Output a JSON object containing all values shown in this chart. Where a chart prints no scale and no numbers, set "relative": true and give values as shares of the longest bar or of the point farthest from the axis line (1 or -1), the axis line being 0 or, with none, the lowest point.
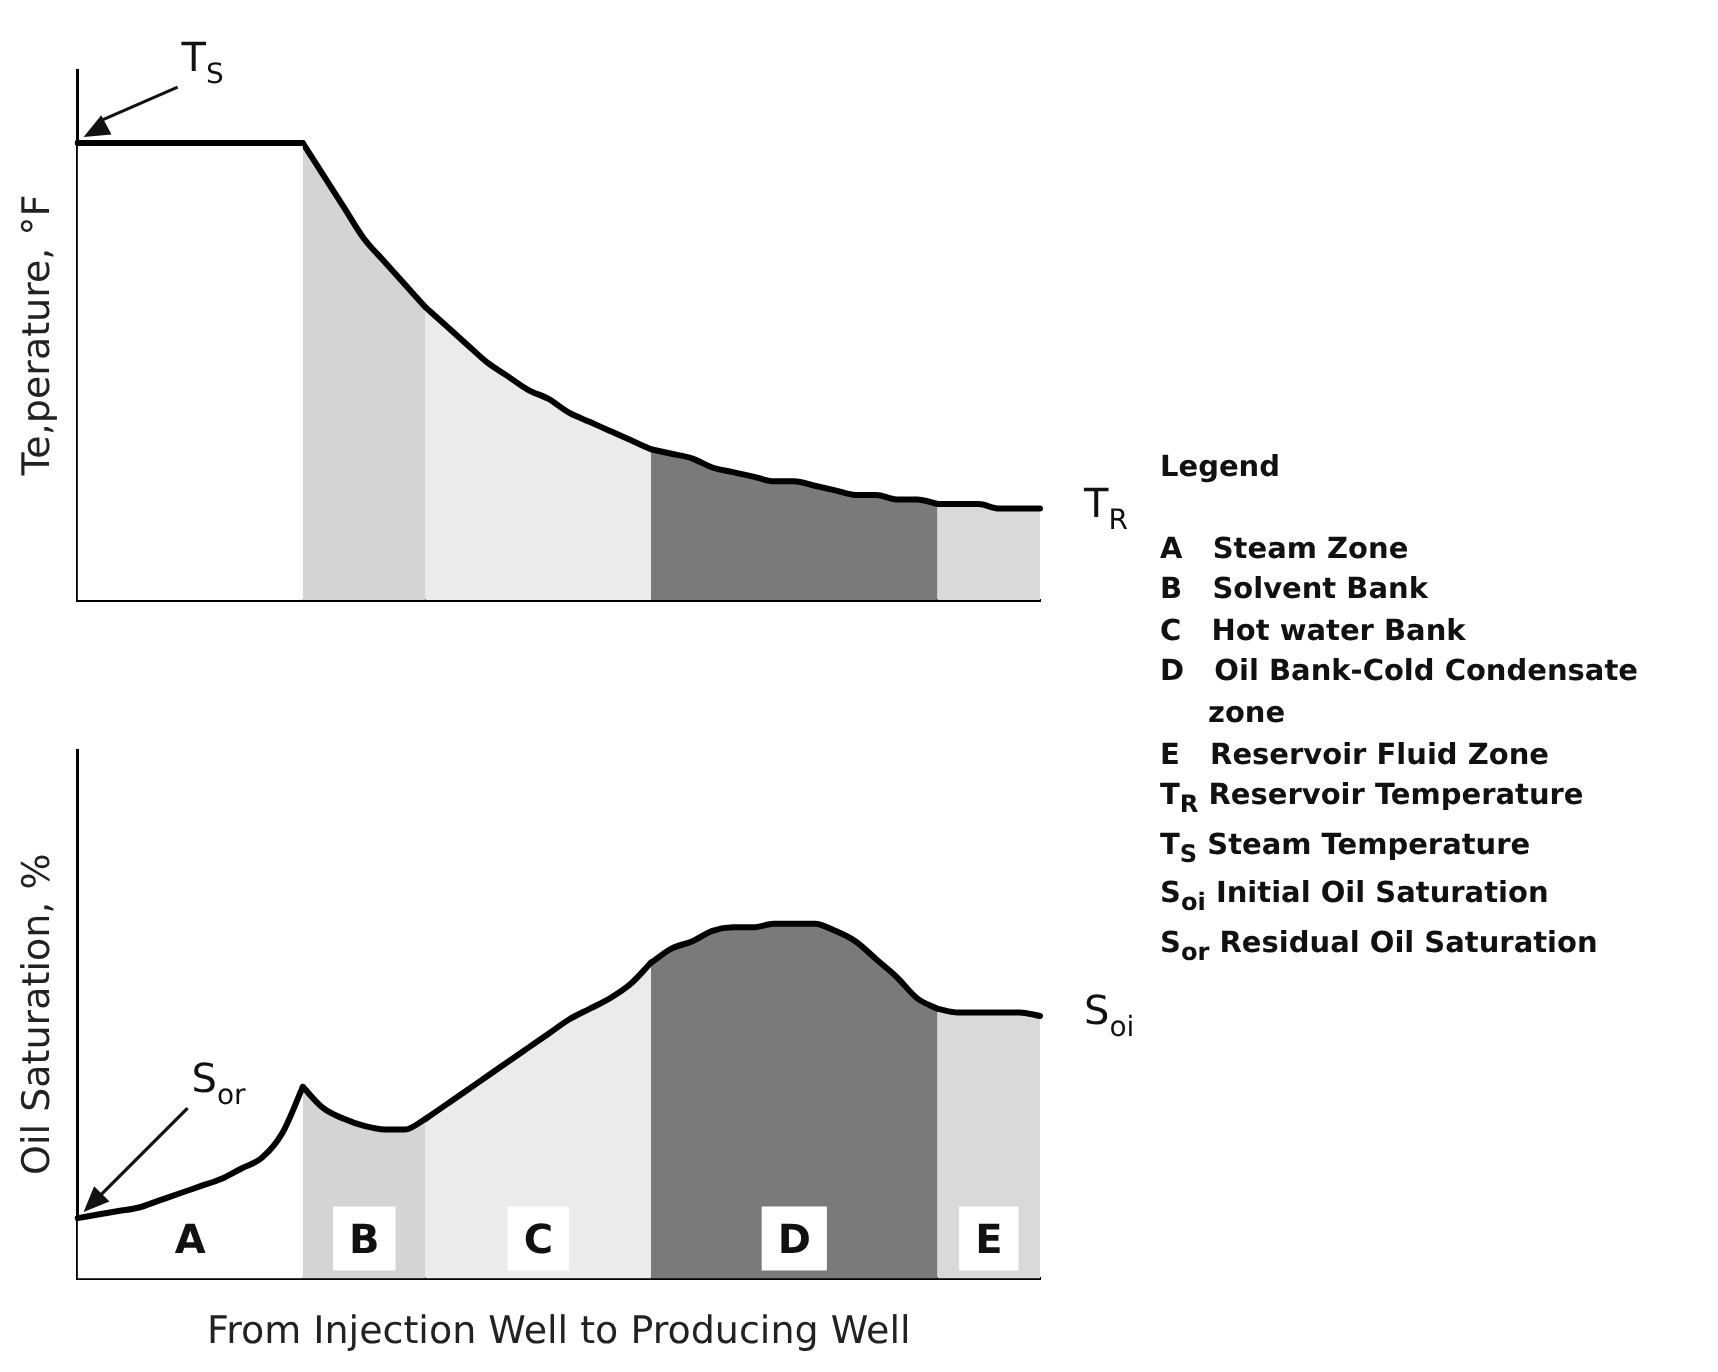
{
  "chart_data": [
    {
      "type": "area",
      "relative": true,
      "tick_labels": false,
      "ylabel": "Te,perature, °F",
      "categories": [
        null,
        null,
        null,
        null,
        null,
        null,
        null,
        null,
        null,
        null,
        null,
        null,
        null,
        null,
        null,
        null,
        null,
        null,
        null,
        null,
        null,
        null,
        null,
        null,
        null,
        null,
        null,
        null,
        null,
        null,
        null,
        null,
        null,
        null,
        null,
        null,
        null,
        null,
        null,
        null,
        null,
        null,
        null,
        null,
        null,
        null,
        null,
        null
      ],
      "series": [
        {
          "color": "#ffffff",
          "values": [
            1,
            1,
            1,
            1,
            1,
            1,
            1,
            1,
            1,
            1,
            1,
            1,
            null,
            null,
            null,
            null,
            null,
            null,
            null,
            null,
            null,
            null,
            null,
            null,
            null,
            null,
            null,
            null,
            null,
            null,
            null,
            null,
            null,
            null,
            null,
            null,
            null,
            null,
            null,
            null,
            null,
            null,
            null,
            null,
            null,
            null,
            null,
            null
          ]
        },
        {
          "color": "#d4d4d4",
          "values": [
            null,
            null,
            null,
            null,
            null,
            null,
            null,
            null,
            null,
            null,
            null,
            1,
            0.93,
            0.86,
            0.79,
            0.74,
            0.69,
            0.64,
            null,
            null,
            null,
            null,
            null,
            null,
            null,
            null,
            null,
            null,
            null,
            null,
            null,
            null,
            null,
            null,
            null,
            null,
            null,
            null,
            null,
            null,
            null,
            null,
            null,
            null,
            null,
            null,
            null,
            null
          ]
        },
        {
          "color": "#ebebeb",
          "values": [
            null,
            null,
            null,
            null,
            null,
            null,
            null,
            null,
            null,
            null,
            null,
            null,
            null,
            null,
            null,
            null,
            null,
            0.64,
            0.6,
            0.56,
            0.52,
            0.49,
            0.46,
            0.44,
            0.41,
            0.39,
            0.37,
            0.35,
            0.33,
            null,
            null,
            null,
            null,
            null,
            null,
            null,
            null,
            null,
            null,
            null,
            null,
            null,
            null,
            null,
            null,
            null,
            null,
            null
          ]
        },
        {
          "color": "#7a7a7a",
          "values": [
            null,
            null,
            null,
            null,
            null,
            null,
            null,
            null,
            null,
            null,
            null,
            null,
            null,
            null,
            null,
            null,
            null,
            null,
            null,
            null,
            null,
            null,
            null,
            null,
            null,
            null,
            null,
            null,
            0.33,
            0.32,
            0.31,
            0.29,
            0.28,
            0.27,
            0.26,
            0.26,
            0.25,
            0.24,
            0.23,
            0.23,
            0.22,
            0.22,
            0.21,
            null,
            null,
            null,
            null,
            null
          ]
        },
        {
          "color": "#d9d9d9",
          "values": [
            null,
            null,
            null,
            null,
            null,
            null,
            null,
            null,
            null,
            null,
            null,
            null,
            null,
            null,
            null,
            null,
            null,
            null,
            null,
            null,
            null,
            null,
            null,
            null,
            null,
            null,
            null,
            null,
            null,
            null,
            null,
            null,
            null,
            null,
            null,
            null,
            null,
            null,
            null,
            null,
            null,
            null,
            0.21,
            0.21,
            0.21,
            0.2,
            0.2,
            0.2
          ]
        }
      ],
      "annotations": [
        {
          "text": "T$_{S}$",
          "y": 1
        },
        "T$_{R}$"
      ]
    },
    {
      "type": "area",
      "relative": true,
      "tick_labels": false,
      "ylabel": "Oil Saturation, %",
      "xlabel": "From Injection Well to Producing Well",
      "categories": [
        null,
        null,
        null,
        null,
        null,
        null,
        null,
        null,
        null,
        null,
        null,
        null,
        null,
        null,
        null,
        null,
        null,
        null,
        null,
        null,
        null,
        null,
        null,
        null,
        null,
        null,
        null,
        null,
        null,
        null,
        null,
        null,
        null,
        null,
        null,
        null,
        null,
        null,
        null,
        null,
        null,
        null,
        null,
        null,
        null,
        null,
        null,
        null
      ],
      "series": [
        {
          "name": "A",
          "color": "#ffffff",
          "values": [
            0.17,
            0.18,
            0.19,
            0.2,
            0.22,
            0.24,
            0.26,
            0.28,
            0.31,
            0.34,
            0.41,
            0.54,
            null,
            null,
            null,
            null,
            null,
            null,
            null,
            null,
            null,
            null,
            null,
            null,
            null,
            null,
            null,
            null,
            null,
            null,
            null,
            null,
            null,
            null,
            null,
            null,
            null,
            null,
            null,
            null,
            null,
            null,
            null,
            null,
            null,
            null,
            null,
            null
          ]
        },
        {
          "name": "B",
          "color": "#d4d4d4",
          "values": [
            null,
            null,
            null,
            null,
            null,
            null,
            null,
            null,
            null,
            null,
            null,
            0.54,
            0.48,
            0.45,
            0.43,
            0.42,
            0.42,
            0.45,
            null,
            null,
            null,
            null,
            null,
            null,
            null,
            null,
            null,
            null,
            null,
            null,
            null,
            null,
            null,
            null,
            null,
            null,
            null,
            null,
            null,
            null,
            null,
            null,
            null,
            null,
            null,
            null,
            null,
            null
          ]
        },
        {
          "name": "C",
          "color": "#ebebeb",
          "values": [
            null,
            null,
            null,
            null,
            null,
            null,
            null,
            null,
            null,
            null,
            null,
            null,
            null,
            null,
            null,
            null,
            null,
            0.45,
            0.49,
            0.53,
            0.57,
            0.61,
            0.65,
            0.69,
            0.73,
            0.76,
            0.79,
            0.83,
            0.89,
            null,
            null,
            null,
            null,
            null,
            null,
            null,
            null,
            null,
            null,
            null,
            null,
            null,
            null,
            null,
            null,
            null,
            null,
            null
          ]
        },
        {
          "name": "D",
          "color": "#7a7a7a",
          "values": [
            null,
            null,
            null,
            null,
            null,
            null,
            null,
            null,
            null,
            null,
            null,
            null,
            null,
            null,
            null,
            null,
            null,
            null,
            null,
            null,
            null,
            null,
            null,
            null,
            null,
            null,
            null,
            null,
            0.89,
            0.93,
            0.95,
            0.98,
            0.99,
            0.99,
            1,
            1,
            1,
            0.98,
            0.95,
            0.9,
            0.85,
            0.79,
            0.76,
            null,
            null,
            null,
            null,
            null
          ]
        },
        {
          "name": "E",
          "color": "#d9d9d9",
          "values": [
            null,
            null,
            null,
            null,
            null,
            null,
            null,
            null,
            null,
            null,
            null,
            null,
            null,
            null,
            null,
            null,
            null,
            null,
            null,
            null,
            null,
            null,
            null,
            null,
            null,
            null,
            null,
            null,
            null,
            null,
            null,
            null,
            null,
            null,
            null,
            null,
            null,
            null,
            null,
            null,
            null,
            null,
            0.76,
            0.75,
            0.75,
            0.75,
            0.75,
            0.74
          ]
        }
      ],
      "annotations": [
        {
          "text": "S$_{or}$",
          "y": 0.17
        },
        "S$_{oi}$",
        "Legend",
        "A   Steam Zone",
        "B   Solvent Bank",
        "C   Hot water Bank",
        "D   Oil Bank-Cold Condensate zone",
        "E   Reservoir Fluid Zone",
        "T$_{R}$ Reservoir Temperature",
        "T$_{S}$ Steam Temperature",
        "S$_{oi}$ Initial Oil Saturation",
        "S$_{or}$ Residual Oil Saturation"
      ]
    }
  ]
}
